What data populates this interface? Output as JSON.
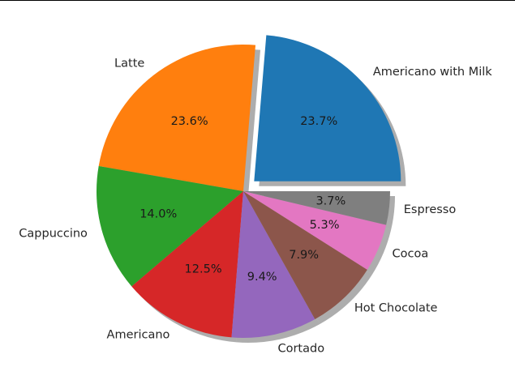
{
  "chart_data": {
    "type": "pie",
    "categories": [
      "Americano with Milk",
      "Latte",
      "Cappuccino",
      "Americano",
      "Cortado",
      "Hot Chocolate",
      "Cocoa",
      "Espresso"
    ],
    "values": [
      23.7,
      23.6,
      14.0,
      12.5,
      9.4,
      7.9,
      5.3,
      3.7
    ],
    "percent_labels": [
      "23.7%",
      "23.6%",
      "14.0%",
      "12.5%",
      "9.4%",
      "7.9%",
      "5.3%",
      "3.7%"
    ],
    "colors": [
      "#1f77b4",
      "#ff7f0e",
      "#2ca02c",
      "#d62728",
      "#9467bd",
      "#8c564b",
      "#e377c2",
      "#7f7f7f"
    ],
    "explode": [
      0.1,
      0,
      0,
      0,
      0,
      0,
      0,
      0
    ],
    "shadow": true,
    "start_angle_deg": 0,
    "title": "",
    "legend": "none"
  }
}
